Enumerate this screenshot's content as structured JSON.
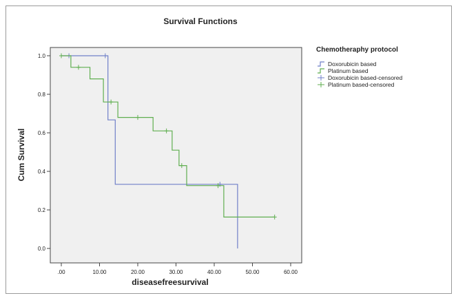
{
  "chart_data": {
    "type": "line",
    "title": "Survival Functions",
    "xlabel": "diseasefreesurvival",
    "ylabel": "Cum Survival",
    "xlim": [
      0,
      60
    ],
    "ylim": [
      0,
      1
    ],
    "x_ticks": [
      0,
      10,
      20,
      30,
      40,
      50,
      60
    ],
    "x_tick_labels": [
      ".00",
      "10.00",
      "20.00",
      "30.00",
      "40.00",
      "50.00",
      "60.00"
    ],
    "y_ticks": [
      0,
      0.2,
      0.4,
      0.6,
      0.8,
      1.0
    ],
    "y_tick_labels": [
      "0.0",
      "0.2",
      "0.4",
      "0.6",
      "0.8",
      "1.0"
    ],
    "grid": false,
    "legend": {
      "title": "Chemotheraphy protocol",
      "position": "right",
      "entries": [
        {
          "label": "Doxorubicin based",
          "color": "#6f7fc8",
          "marker": "step"
        },
        {
          "label": "Platinum based",
          "color": "#5fae4f",
          "marker": "step"
        },
        {
          "label": "Doxorubicin based-censored",
          "color": "#6f7fc8",
          "marker": "plus"
        },
        {
          "label": "Platinum based-censored",
          "color": "#5fae4f",
          "marker": "plus"
        }
      ]
    },
    "series": [
      {
        "name": "Doxorubicin based",
        "color": "#6f7fc8",
        "steps": [
          [
            0,
            1.0
          ],
          [
            12.2,
            1.0
          ],
          [
            12.2,
            0.667
          ],
          [
            14.1,
            0.667
          ],
          [
            14.1,
            0.333
          ],
          [
            46.1,
            0.333
          ],
          [
            46.1,
            0.0
          ]
        ],
        "censored": [
          [
            2.0,
            1.0
          ],
          [
            11.5,
            1.0
          ],
          [
            41.5,
            0.333
          ]
        ]
      },
      {
        "name": "Platinum based",
        "color": "#5fae4f",
        "steps": [
          [
            0,
            1.0
          ],
          [
            2.5,
            1.0
          ],
          [
            2.5,
            0.94
          ],
          [
            7.5,
            0.94
          ],
          [
            7.5,
            0.88
          ],
          [
            11.0,
            0.88
          ],
          [
            11.0,
            0.76
          ],
          [
            14.8,
            0.76
          ],
          [
            14.8,
            0.68
          ],
          [
            24.0,
            0.68
          ],
          [
            24.0,
            0.61
          ],
          [
            29.0,
            0.61
          ],
          [
            29.0,
            0.51
          ],
          [
            30.8,
            0.51
          ],
          [
            30.8,
            0.43
          ],
          [
            32.8,
            0.43
          ],
          [
            32.8,
            0.326
          ],
          [
            42.5,
            0.326
          ],
          [
            42.5,
            0.163
          ],
          [
            55.8,
            0.163
          ]
        ],
        "censored": [
          [
            0,
            1.0
          ],
          [
            4.5,
            0.94
          ],
          [
            13.0,
            0.76
          ],
          [
            20.0,
            0.68
          ],
          [
            27.5,
            0.61
          ],
          [
            31.5,
            0.43
          ],
          [
            41.0,
            0.326
          ],
          [
            55.8,
            0.163
          ]
        ]
      }
    ]
  }
}
